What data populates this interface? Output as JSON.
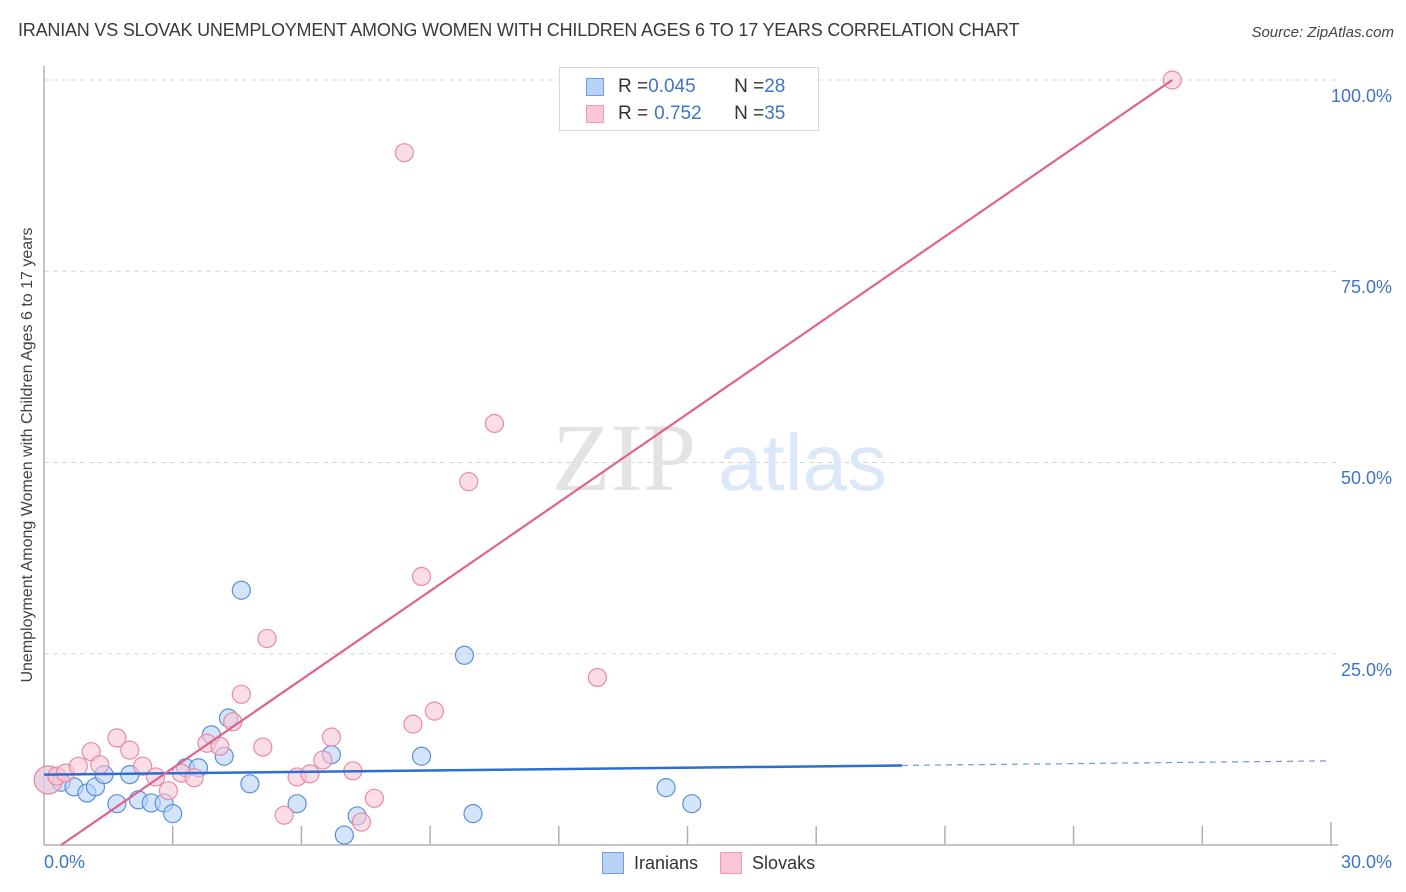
{
  "title": "IRANIAN VS SLOVAK UNEMPLOYMENT AMONG WOMEN WITH CHILDREN AGES 6 TO 17 YEARS CORRELATION CHART",
  "source": "Source: ZipAtlas.com",
  "watermark": {
    "zip": "ZIP",
    "atlas": "atlas"
  },
  "legend": {
    "rows": [
      {
        "r_label": "R = ",
        "r_value": "0.045",
        "n_label": "N = ",
        "n_value": "28"
      },
      {
        "r_label": "R = ",
        "r_value": "0.752",
        "n_label": "N = ",
        "n_value": "35"
      }
    ],
    "bottom": [
      "Iranians",
      "Slovaks"
    ]
  },
  "axes": {
    "ylabel": "Unemployment Among Women with Children Ages 6 to 17 years",
    "yticks": [
      "100.0%",
      "75.0%",
      "50.0%",
      "25.0%"
    ],
    "xticks": [
      "0.0%",
      "30.0%"
    ]
  },
  "colors": {
    "iranians_fill": "#b8d3f5",
    "iranians_stroke": "#5b8fdc",
    "iranians_line": "#2a6fd1",
    "slovaks_fill": "#f9c6d5",
    "slovaks_stroke": "#e88aa6",
    "slovaks_line": "#e0628c",
    "tick_text": "#3f74cc"
  },
  "chart_data": {
    "type": "scatter",
    "title": "IRANIAN VS SLOVAK UNEMPLOYMENT AMONG WOMEN WITH CHILDREN AGES 6 TO 17 YEARS CORRELATION CHART",
    "xlabel": "",
    "ylabel": "Unemployment Among Women with Children Ages 6 to 17 years",
    "xlim": [
      0,
      30
    ],
    "ylim": [
      0,
      100
    ],
    "grid": "horizontal dashed at 25/50/75/100",
    "legend_position": "top-center",
    "series": [
      {
        "name": "Iranians",
        "R": 0.045,
        "N": 28,
        "trend": {
          "x": [
            0,
            30
          ],
          "y": [
            9.2,
            11.0
          ],
          "solid_until_x": 20
        },
        "points": [
          [
            0.1,
            8.5
          ],
          [
            0.4,
            8.2
          ],
          [
            0.7,
            7.6
          ],
          [
            1.0,
            6.8
          ],
          [
            1.2,
            7.6
          ],
          [
            1.4,
            9.2
          ],
          [
            2.0,
            9.2
          ],
          [
            1.7,
            5.4
          ],
          [
            2.2,
            5.9
          ],
          [
            2.5,
            5.5
          ],
          [
            2.8,
            5.5
          ],
          [
            3.0,
            4.1
          ],
          [
            3.3,
            10.1
          ],
          [
            3.6,
            10.1
          ],
          [
            3.9,
            14.4
          ],
          [
            4.2,
            11.6
          ],
          [
            4.3,
            16.6
          ],
          [
            4.6,
            33.3
          ],
          [
            4.8,
            8.0
          ],
          [
            5.9,
            5.4
          ],
          [
            6.7,
            11.8
          ],
          [
            7.0,
            1.3
          ],
          [
            7.3,
            3.8
          ],
          [
            8.8,
            11.6
          ],
          [
            9.8,
            24.8
          ],
          [
            10.0,
            4.1
          ],
          [
            14.5,
            7.5
          ],
          [
            15.1,
            5.4
          ]
        ]
      },
      {
        "name": "Slovaks",
        "R": 0.752,
        "N": 35,
        "trend": {
          "x": [
            0.4,
            26.3
          ],
          "y": [
            0,
            100
          ]
        },
        "points": [
          [
            0.1,
            8.5
          ],
          [
            0.3,
            9.0
          ],
          [
            0.5,
            9.4
          ],
          [
            0.8,
            10.3
          ],
          [
            1.1,
            12.2
          ],
          [
            1.3,
            10.5
          ],
          [
            1.7,
            14.0
          ],
          [
            2.0,
            12.4
          ],
          [
            2.3,
            10.3
          ],
          [
            2.6,
            8.9
          ],
          [
            2.9,
            7.1
          ],
          [
            3.2,
            9.4
          ],
          [
            3.5,
            8.8
          ],
          [
            3.8,
            13.3
          ],
          [
            4.1,
            12.9
          ],
          [
            4.4,
            16.1
          ],
          [
            4.6,
            19.7
          ],
          [
            5.1,
            12.8
          ],
          [
            5.2,
            27.0
          ],
          [
            5.6,
            3.9
          ],
          [
            5.9,
            8.9
          ],
          [
            6.2,
            9.3
          ],
          [
            6.5,
            11.1
          ],
          [
            6.7,
            14.1
          ],
          [
            7.2,
            9.7
          ],
          [
            7.4,
            3.0
          ],
          [
            7.7,
            6.1
          ],
          [
            8.4,
            90.5
          ],
          [
            8.6,
            15.8
          ],
          [
            8.8,
            35.1
          ],
          [
            9.1,
            17.5
          ],
          [
            9.9,
            47.5
          ],
          [
            10.5,
            55.1
          ],
          [
            12.9,
            21.9
          ],
          [
            26.3,
            100.0
          ]
        ]
      }
    ]
  }
}
